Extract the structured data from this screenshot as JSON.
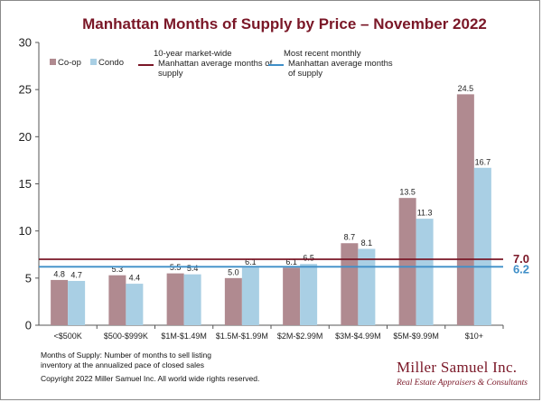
{
  "colors": {
    "coop": "#b08a90",
    "condo": "#a9cfe4",
    "avg10": "#7a1727",
    "recent": "#3f8fc8",
    "title": "#7a1727",
    "axis": "#555555"
  },
  "chart_data": {
    "type": "bar",
    "title": "Manhattan Months of Supply by Price – November 2022",
    "categories": [
      "<$500K",
      "$500-$999K",
      "$1M-$1.49M",
      "$1.5M-$1.99M",
      "$2M-$2.99M",
      "$3M-$4.99M",
      "$5M-$9.99M",
      "$10+"
    ],
    "series": [
      {
        "name": "Co-op",
        "values": [
          4.8,
          5.3,
          5.5,
          5.0,
          6.1,
          8.7,
          13.5,
          24.5
        ],
        "labels": [
          "4.8",
          "5.3",
          "5.5",
          "5.0",
          "6.1",
          "8.7",
          "13.5",
          "24.5"
        ]
      },
      {
        "name": "Condo",
        "values": [
          4.7,
          4.4,
          5.4,
          6.1,
          6.5,
          8.1,
          11.3,
          16.7
        ],
        "labels": [
          "4.7",
          "4.4",
          "5.4",
          "6.1",
          "6.5",
          "8.1",
          "11.3",
          "16.7"
        ]
      }
    ],
    "reference_lines": [
      {
        "value": 7.0,
        "label": "7.0",
        "legend": [
          "10-year market-wide",
          "Manhattan average months of",
          "supply"
        ]
      },
      {
        "value": 6.2,
        "label": "6.2",
        "legend": [
          "Most recent monthly",
          "Manhattan average months",
          "of supply"
        ]
      }
    ],
    "ylim": [
      0,
      30
    ],
    "yticks": [
      0,
      5,
      10,
      15,
      20,
      25,
      30
    ],
    "xlabel": "",
    "ylabel": "",
    "grid": false,
    "legend_position": "top-left"
  },
  "footer": {
    "note_line1": "Months of Supply: Number of months to sell listing",
    "note_line2": "inventory at the annualized pace of closed sales",
    "copyright": "Copyright 2022 Miller Samuel Inc.  All world wide rights reserved."
  },
  "brand": {
    "name": "Miller Samuel Inc.",
    "tagline": "Real Estate Appraisers & Consultants"
  }
}
